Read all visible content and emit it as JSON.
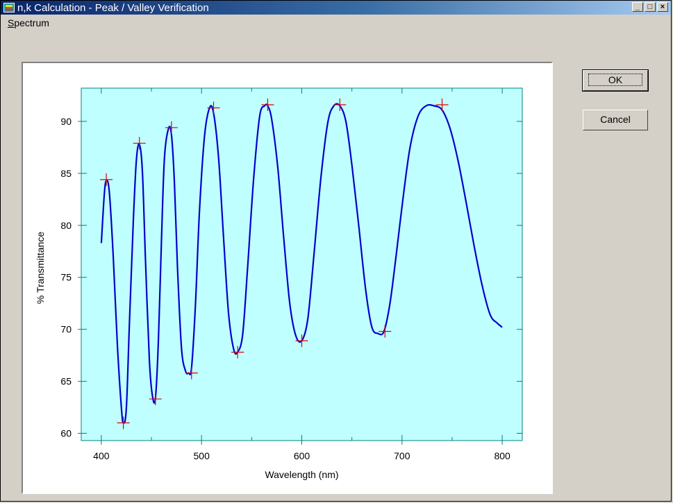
{
  "window": {
    "title": "n,k Calculation - Peak / Valley Verification"
  },
  "menu": {
    "spectrum": "Spectrum",
    "spectrum_accel": "S",
    "spectrum_rest": "pectrum"
  },
  "buttons": {
    "ok": "OK",
    "cancel": "Cancel"
  },
  "titlebar_buttons": {
    "minimize": "_",
    "maximize": "□",
    "close": "×"
  },
  "colors": {
    "plot_bg": "#c0ffff",
    "curve": "#0000cc",
    "marker": "#dd0000",
    "axis": "#008080"
  },
  "chart_data": {
    "type": "line",
    "xlabel": "Wavelength (nm)",
    "ylabel": "% Transmittance",
    "xlim": [
      380,
      820
    ],
    "ylim": [
      59.3,
      93.2
    ],
    "xticks": [
      400,
      500,
      600,
      700,
      800
    ],
    "yticks": [
      60,
      65,
      70,
      75,
      80,
      85,
      90
    ],
    "grid": false,
    "series": [
      {
        "values_x": [
          400,
          403,
          405,
          408,
          412,
          416,
          420,
          422,
          425,
          428,
          432,
          435,
          438,
          441,
          444,
          448,
          451,
          454,
          457,
          460,
          463,
          467,
          470,
          473,
          476,
          480,
          484,
          487,
          490,
          494,
          498,
          503,
          508,
          512,
          517,
          522,
          527,
          532,
          536,
          541,
          546,
          552,
          558,
          563,
          566,
          570,
          576,
          582,
          588,
          594,
          600,
          606,
          612,
          619,
          626,
          632,
          638,
          644,
          650,
          657,
          664,
          670,
          676,
          682,
          688,
          694,
          701,
          708,
          716,
          724,
          732,
          740,
          748,
          756,
          764,
          772,
          780,
          788,
          795,
          800
        ],
        "values_y": [
          78.3,
          83.0,
          84.3,
          83.2,
          76.8,
          68.5,
          62.5,
          61.0,
          62.4,
          70.5,
          80.5,
          86.3,
          87.8,
          85.2,
          76.8,
          67.0,
          63.6,
          63.4,
          69.0,
          78.6,
          86.5,
          89.3,
          88.7,
          84.0,
          76.0,
          68.2,
          66.0,
          65.8,
          66.3,
          72.5,
          81.5,
          88.6,
          91.3,
          90.8,
          86.5,
          78.8,
          71.5,
          68.1,
          67.8,
          69.5,
          76.0,
          84.5,
          90.5,
          91.5,
          91.5,
          90.2,
          85.6,
          78.8,
          72.5,
          69.4,
          68.9,
          71.0,
          77.0,
          84.5,
          89.9,
          91.5,
          91.5,
          90.0,
          85.8,
          79.8,
          73.6,
          70.2,
          69.6,
          69.8,
          72.5,
          77.0,
          82.6,
          87.5,
          90.5,
          91.5,
          91.5,
          91.1,
          89.3,
          86.2,
          82.2,
          78.0,
          74.2,
          71.4,
          70.6,
          70.2
        ]
      }
    ],
    "markers": {
      "x": [
        405,
        422,
        438,
        454,
        470,
        490,
        512,
        536,
        566,
        600,
        638,
        683,
        740
      ],
      "y": [
        84.4,
        61.0,
        87.9,
        63.3,
        89.4,
        65.8,
        91.3,
        67.8,
        91.6,
        68.9,
        91.6,
        69.8,
        91.6
      ]
    }
  }
}
